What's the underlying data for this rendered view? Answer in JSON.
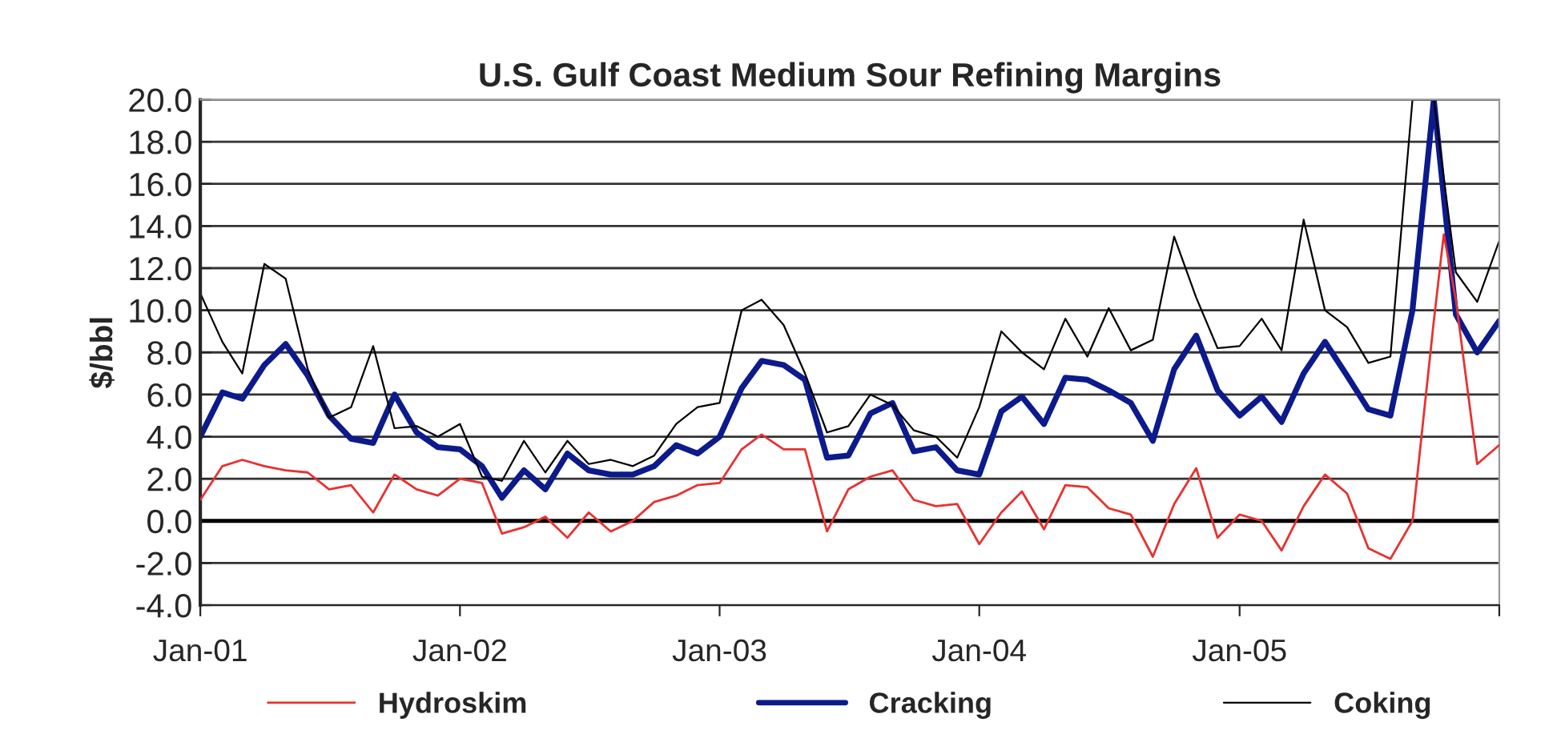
{
  "chart_data": {
    "type": "line",
    "title": "U.S. Gulf Coast Medium Sour Refining Margins",
    "ylabel": "$/bbl",
    "x": [
      "2001-01",
      "2001-02",
      "2001-03",
      "2001-04",
      "2001-05",
      "2001-06",
      "2001-07",
      "2001-08",
      "2001-09",
      "2001-10",
      "2001-11",
      "2001-12",
      "2002-01",
      "2002-02",
      "2002-03",
      "2002-04",
      "2002-05",
      "2002-06",
      "2002-07",
      "2002-08",
      "2002-09",
      "2002-10",
      "2002-11",
      "2002-12",
      "2003-01",
      "2003-02",
      "2003-03",
      "2003-04",
      "2003-05",
      "2003-06",
      "2003-07",
      "2003-08",
      "2003-09",
      "2003-10",
      "2003-11",
      "2003-12",
      "2004-01",
      "2004-02",
      "2004-03",
      "2004-04",
      "2004-05",
      "2004-06",
      "2004-07",
      "2004-08",
      "2004-09",
      "2004-10",
      "2004-11",
      "2004-12",
      "2005-01",
      "2005-02",
      "2005-03",
      "2005-04",
      "2005-05",
      "2005-06",
      "2005-07",
      "2005-08",
      "2005-09",
      "2005-10",
      "2005-11",
      "2005-12",
      "2006-01"
    ],
    "series": [
      {
        "name": "Hydroskim",
        "color": "#e8312f",
        "x": [
          "2001-01",
          "2001-02",
          "2001-03",
          "2001-04",
          "2001-05",
          "2001-06",
          "2001-07",
          "2001-08",
          "2001-09",
          "2001-10",
          "2001-11",
          "2001-12",
          "2002-01",
          "2002-02",
          "2002-03",
          "2002-04",
          "2002-05",
          "2002-06",
          "2002-07",
          "2002-08",
          "2002-09",
          "2002-10",
          "2002-11",
          "2002-12",
          "2003-01",
          "2003-02",
          "2003-03",
          "2003-04",
          "2003-05",
          "2003-06",
          "2003-07",
          "2003-08",
          "2003-09",
          "2003-10",
          "2003-11",
          "2003-12",
          "2004-01",
          "2004-02",
          "2004-03",
          "2004-04",
          "2004-05",
          "2004-06",
          "2004-07",
          "2004-08",
          "2004-09",
          "2004-10",
          "2004-11",
          "2004-12",
          "2005-01",
          "2005-02",
          "2005-03",
          "2005-04",
          "2005-05",
          "2005-06",
          "2005-07",
          "2005-08",
          "2005-09",
          "2005-10",
          "2005-10-15",
          "2005-11",
          "2005-12",
          "2006-01"
        ],
        "values": [
          1.0,
          2.6,
          2.9,
          2.6,
          2.4,
          2.3,
          1.5,
          1.7,
          0.4,
          2.2,
          1.5,
          1.2,
          2.0,
          1.8,
          -0.6,
          -0.3,
          0.2,
          -0.8,
          0.4,
          -0.5,
          0.0,
          0.9,
          1.2,
          1.7,
          1.8,
          3.4,
          4.1,
          3.4,
          3.4,
          -0.5,
          1.5,
          2.1,
          2.4,
          1.0,
          0.7,
          0.8,
          -1.1,
          0.4,
          1.4,
          -0.4,
          1.7,
          1.6,
          0.6,
          0.3,
          -1.7,
          0.8,
          2.5,
          -0.8,
          0.3,
          0.0,
          -1.4,
          0.7,
          2.2,
          1.3,
          -1.3,
          -1.8,
          0.0,
          9.5,
          13.6,
          10.5,
          2.7,
          3.6
        ]
      },
      {
        "name": "Cracking",
        "color": "#0c1a8c",
        "values": [
          4.0,
          6.1,
          5.8,
          7.4,
          8.4,
          6.9,
          5.0,
          3.9,
          3.7,
          6.0,
          4.2,
          3.5,
          3.4,
          2.6,
          1.1,
          2.4,
          1.5,
          3.2,
          2.4,
          2.2,
          2.2,
          2.6,
          3.6,
          3.2,
          4.0,
          6.3,
          7.6,
          7.4,
          6.7,
          3.0,
          3.1,
          5.1,
          5.6,
          3.3,
          3.5,
          2.4,
          2.2,
          5.2,
          5.9,
          4.6,
          6.8,
          6.7,
          6.2,
          5.6,
          3.8,
          7.2,
          8.8,
          6.2,
          5.0,
          5.9,
          4.7,
          7.0,
          8.5,
          6.9,
          5.3,
          5.0,
          10.0,
          20.0,
          9.8,
          8.0,
          9.5
        ]
      },
      {
        "name": "Coking",
        "color": "#000000",
        "values": [
          10.8,
          8.5,
          7.0,
          12.2,
          11.5,
          7.2,
          4.9,
          5.4,
          8.3,
          4.4,
          4.5,
          4.0,
          4.6,
          2.1,
          1.9,
          3.8,
          2.3,
          3.8,
          2.7,
          2.9,
          2.6,
          3.1,
          4.6,
          5.4,
          5.6,
          10.0,
          10.5,
          9.3,
          7.0,
          4.2,
          4.5,
          6.0,
          5.5,
          4.3,
          4.0,
          3.0,
          5.4,
          9.0,
          8.0,
          7.2,
          9.6,
          7.8,
          10.1,
          8.1,
          8.6,
          13.5,
          10.6,
          8.2,
          8.3,
          9.6,
          8.1,
          14.3,
          10.0,
          9.2,
          7.5,
          7.8,
          20.0,
          20.0,
          11.8,
          10.4,
          13.3
        ]
      }
    ],
    "xlim": [
      "2001-01",
      "2006-01"
    ],
    "xticks": [
      {
        "value": "2001-01",
        "label": "Jan-01"
      },
      {
        "value": "2002-01",
        "label": "Jan-02"
      },
      {
        "value": "2003-01",
        "label": "Jan-03"
      },
      {
        "value": "2004-01",
        "label": "Jan-04"
      },
      {
        "value": "2005-01",
        "label": "Jan-05"
      },
      {
        "value": "2006-01",
        "label": null
      }
    ],
    "ylim": [
      -4,
      20
    ],
    "yticks": [
      {
        "value": -4,
        "label": "-4.0"
      },
      {
        "value": -2,
        "label": "-2.0"
      },
      {
        "value": 0,
        "label": "0.0"
      },
      {
        "value": 2,
        "label": "2.0"
      },
      {
        "value": 4,
        "label": "4.0"
      },
      {
        "value": 6,
        "label": "6.0"
      },
      {
        "value": 8,
        "label": "8.0"
      },
      {
        "value": 10,
        "label": "10.0"
      },
      {
        "value": 12,
        "label": "12.0"
      },
      {
        "value": 14,
        "label": "14.0"
      },
      {
        "value": 16,
        "label": "16.0"
      },
      {
        "value": 18,
        "label": "18.0"
      },
      {
        "value": 20,
        "label": "20.0"
      }
    ],
    "ref_lines": [
      {
        "axis": "y",
        "value": 0,
        "label": null,
        "color": "#000000"
      }
    ],
    "grid": "y",
    "legend": "bottom",
    "marker": "none",
    "line_style": "solid"
  }
}
